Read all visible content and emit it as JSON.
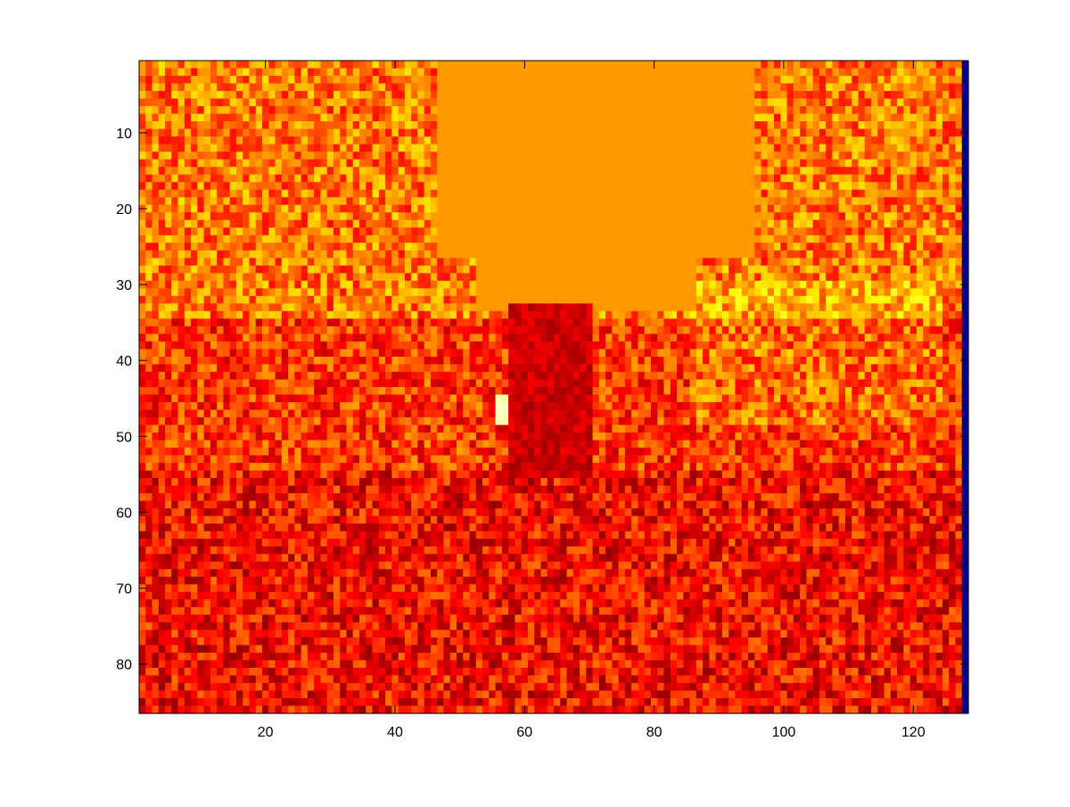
{
  "chart_data": {
    "type": "heatmap",
    "title": "",
    "xlabel": "",
    "ylabel": "",
    "colormap": "hot",
    "grid": false,
    "legend": "none",
    "columns": 128,
    "rows": 86,
    "xlim": [
      0.5,
      128.5
    ],
    "ylim": [
      0.5,
      86.5
    ],
    "y_reversed": true,
    "xticks": [
      20,
      40,
      60,
      80,
      100,
      120
    ],
    "yticks": [
      10,
      20,
      30,
      40,
      50,
      60,
      70,
      80
    ],
    "xtick_labels": [
      "20",
      "40",
      "60",
      "80",
      "100",
      "120"
    ],
    "ytick_labels": [
      "10",
      "20",
      "30",
      "40",
      "50",
      "60",
      "70",
      "80"
    ],
    "value_range": [
      0,
      1
    ],
    "last_column_value": 0,
    "regions": {
      "sky_plateau": {
        "x": [
          47,
          95
        ],
        "y": [
          1,
          33
        ],
        "value": 0.6
      },
      "dark_structure": {
        "x": [
          58,
          70
        ],
        "y": [
          33,
          55
        ],
        "value": 0.3
      },
      "bright_spot": {
        "x": [
          56,
          57
        ],
        "y": [
          45,
          48
        ],
        "value": 0.95
      },
      "upper_canopy_mean": 0.55,
      "middle_mean": 0.45,
      "lower_ground_mean": 0.38
    }
  },
  "colors": {
    "axes_border": "#000000",
    "background": "#ffffff",
    "last_column": "#00008f"
  }
}
